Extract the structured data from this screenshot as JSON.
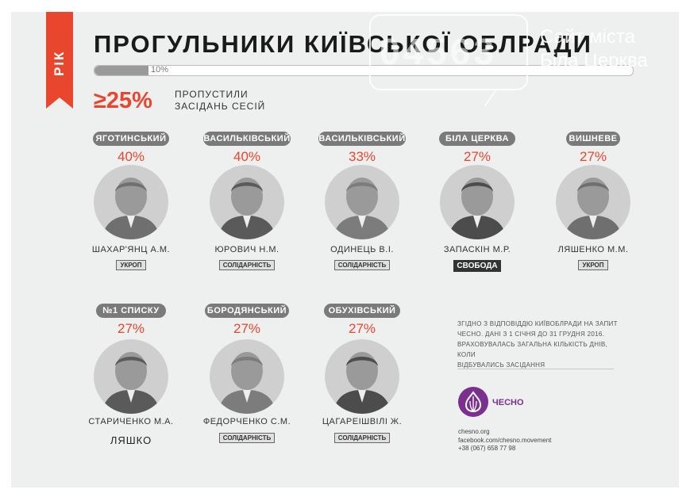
{
  "header": {
    "ribbon": "РІК",
    "title": "ПРОГУЛЬНИКИ КИЇВСЬКОЇ ОБЛРАДИ",
    "progress_label": "10%",
    "progress_value": 0.1,
    "big_pct": "≥25%",
    "big_note_line1": "ПРОПУСТИЛИ",
    "big_note_line2": "ЗАСІДАНЬ СЕСІЙ"
  },
  "watermark": {
    "number": "04563",
    "line1": "Сайт міста",
    "line2": "Біла Церква"
  },
  "people": [
    {
      "tag": "ЯГОТИНСЬКИЙ",
      "pct": "40%",
      "name": "ШАХАР'ЯНЦ А.М.",
      "party": "УКРОП"
    },
    {
      "tag": "ВАСИЛЬКІВСЬКИЙ",
      "pct": "40%",
      "name": "ЮРОВИЧ Н.М.",
      "party": "СОЛІДАРНІСТЬ"
    },
    {
      "tag": "ВАСИЛЬКІВСЬКИЙ",
      "pct": "33%",
      "name": "ОДИНЕЦЬ В.І.",
      "party": "СОЛІДАРНІСТЬ"
    },
    {
      "tag": "БІЛА ЦЕРКВА",
      "pct": "27%",
      "name": "ЗАПАСКІН М.Р.",
      "party": "СВОБОДА"
    },
    {
      "tag": "ВИШНЕВЕ",
      "pct": "27%",
      "name": "ЛЯШЕНКО М.М.",
      "party": "УКРОП"
    },
    {
      "tag": "№1 СПИСКУ",
      "pct": "27%",
      "name": "СТАРИЧЕНКО М.А.",
      "party": "ЛЯШКО"
    },
    {
      "tag": "БОРОДЯНСЬКИЙ",
      "pct": "27%",
      "name": "ФЕДОРЧЕНКО С.М.",
      "party": "СОЛІДАРНІСТЬ"
    },
    {
      "tag": "ОБУХІВСЬКИЙ",
      "pct": "27%",
      "name": "ЦАГАРЕІШВІЛІ Ж.",
      "party": "СОЛІДАРНІСТЬ"
    }
  ],
  "note": {
    "line1": "ЗГІДНО З ВІДПОВІДДЮ КИЇВОБЛРАДИ НА ЗАПИТ",
    "line2": "ЧЕСНО. ДАНІ З 1 СІЧНЯ ДО 31 ГРУДНЯ 2016.",
    "line3": "ВРАХОВУВАЛАСЬ ЗАГАЛЬНА КІЛЬКІСТЬ ДНІВ, КОЛИ",
    "line4": "ВІДБУВАЛИСЬ ЗАСІДАННЯ"
  },
  "chesno": {
    "label": "ЧЕСНО"
  },
  "contacts": {
    "site": "chesno.org",
    "facebook": "facebook.com/chesno.movement",
    "phone": "+38 (067) 658 77 98"
  },
  "colors": {
    "accent": "#e8472e",
    "tag_gray": "#7a7a7a",
    "chesno_purple": "#7b2f8f"
  }
}
